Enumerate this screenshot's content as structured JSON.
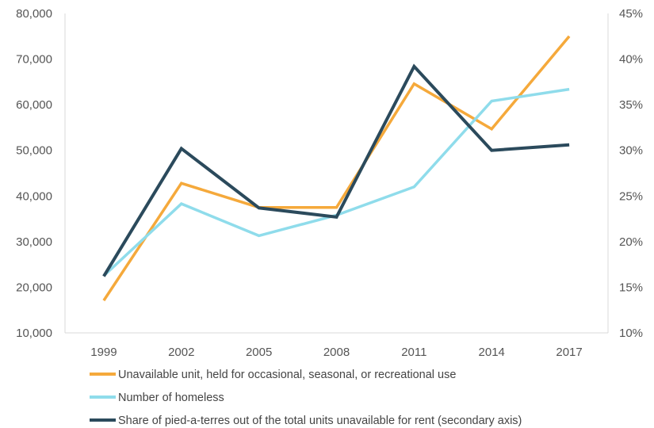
{
  "chart_data": {
    "type": "line",
    "title": "",
    "xlabel": "",
    "ylabel": "",
    "x": [
      "1999",
      "2002",
      "2005",
      "2008",
      "2011",
      "2014",
      "2017"
    ],
    "y_left": {
      "min": 10000,
      "max": 80000,
      "step": 10000,
      "tick_labels": [
        "10,000",
        "20,000",
        "30,000",
        "40,000",
        "50,000",
        "60,000",
        "70,000",
        "80,000"
      ]
    },
    "y_right": {
      "min": 10,
      "max": 45,
      "step": 5,
      "tick_labels": [
        "10%",
        "15%",
        "20%",
        "25%",
        "30%",
        "35%",
        "40%",
        "45%"
      ]
    },
    "grid": false,
    "legend_position": "bottom",
    "series": [
      {
        "name": "Unavailable unit, held for occasional, seasonal, or recreational use",
        "axis": "left",
        "color": "#F5A93B",
        "values": [
          17100,
          42800,
          37500,
          37500,
          64600,
          54700,
          75000
        ]
      },
      {
        "name": "Number of homeless",
        "axis": "left",
        "color": "#8FDCEB",
        "values": [
          22500,
          38300,
          31300,
          35800,
          42000,
          60800,
          63400
        ]
      },
      {
        "name": "Share of pied-a-terres out of the total units unavailable for rent (secondary axis)",
        "axis": "right",
        "color": "#2B4A5C",
        "values": [
          16.2,
          30.2,
          23.7,
          22.7,
          39.2,
          30.0,
          30.6
        ]
      }
    ]
  }
}
